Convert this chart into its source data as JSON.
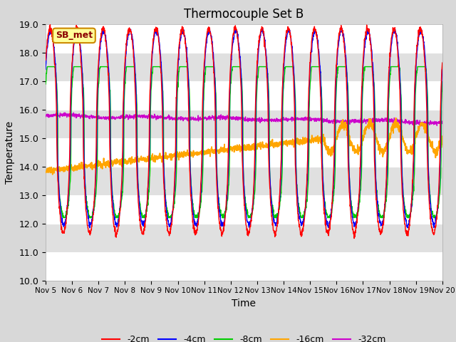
{
  "title": "Thermocouple Set B",
  "xlabel": "Time",
  "ylabel": "Temperature",
  "ylim": [
    10.0,
    19.0
  ],
  "yticks": [
    10.0,
    11.0,
    12.0,
    13.0,
    14.0,
    15.0,
    16.0,
    17.0,
    18.0,
    19.0
  ],
  "x_tick_labels": [
    "Nov 5",
    "Nov 6",
    "Nov 7",
    "Nov 8",
    "Nov 9",
    "Nov 10",
    "Nov 11",
    "Nov 12",
    "Nov 13",
    "Nov 14",
    "Nov 15",
    "Nov 16",
    "Nov 17",
    "Nov 18",
    "Nov 19",
    "Nov 20"
  ],
  "colors": {
    "minus2cm": "#ff0000",
    "minus4cm": "#0000ff",
    "minus8cm": "#00cc00",
    "minus16cm": "#ffa500",
    "minus32cm": "#cc00cc"
  },
  "legend_labels": [
    "-2cm",
    "-4cm",
    "-8cm",
    "-16cm",
    "-32cm"
  ],
  "annotation_label": "SB_met",
  "annotation_facecolor": "#ffff99",
  "annotation_edgecolor": "#cc8800",
  "annotation_textcolor": "#8b0000",
  "fig_bg": "#d8d8d8",
  "plot_bg_light": "#e8e8e8",
  "plot_bg_dark": "#d0d0d0",
  "n_points": 2000
}
